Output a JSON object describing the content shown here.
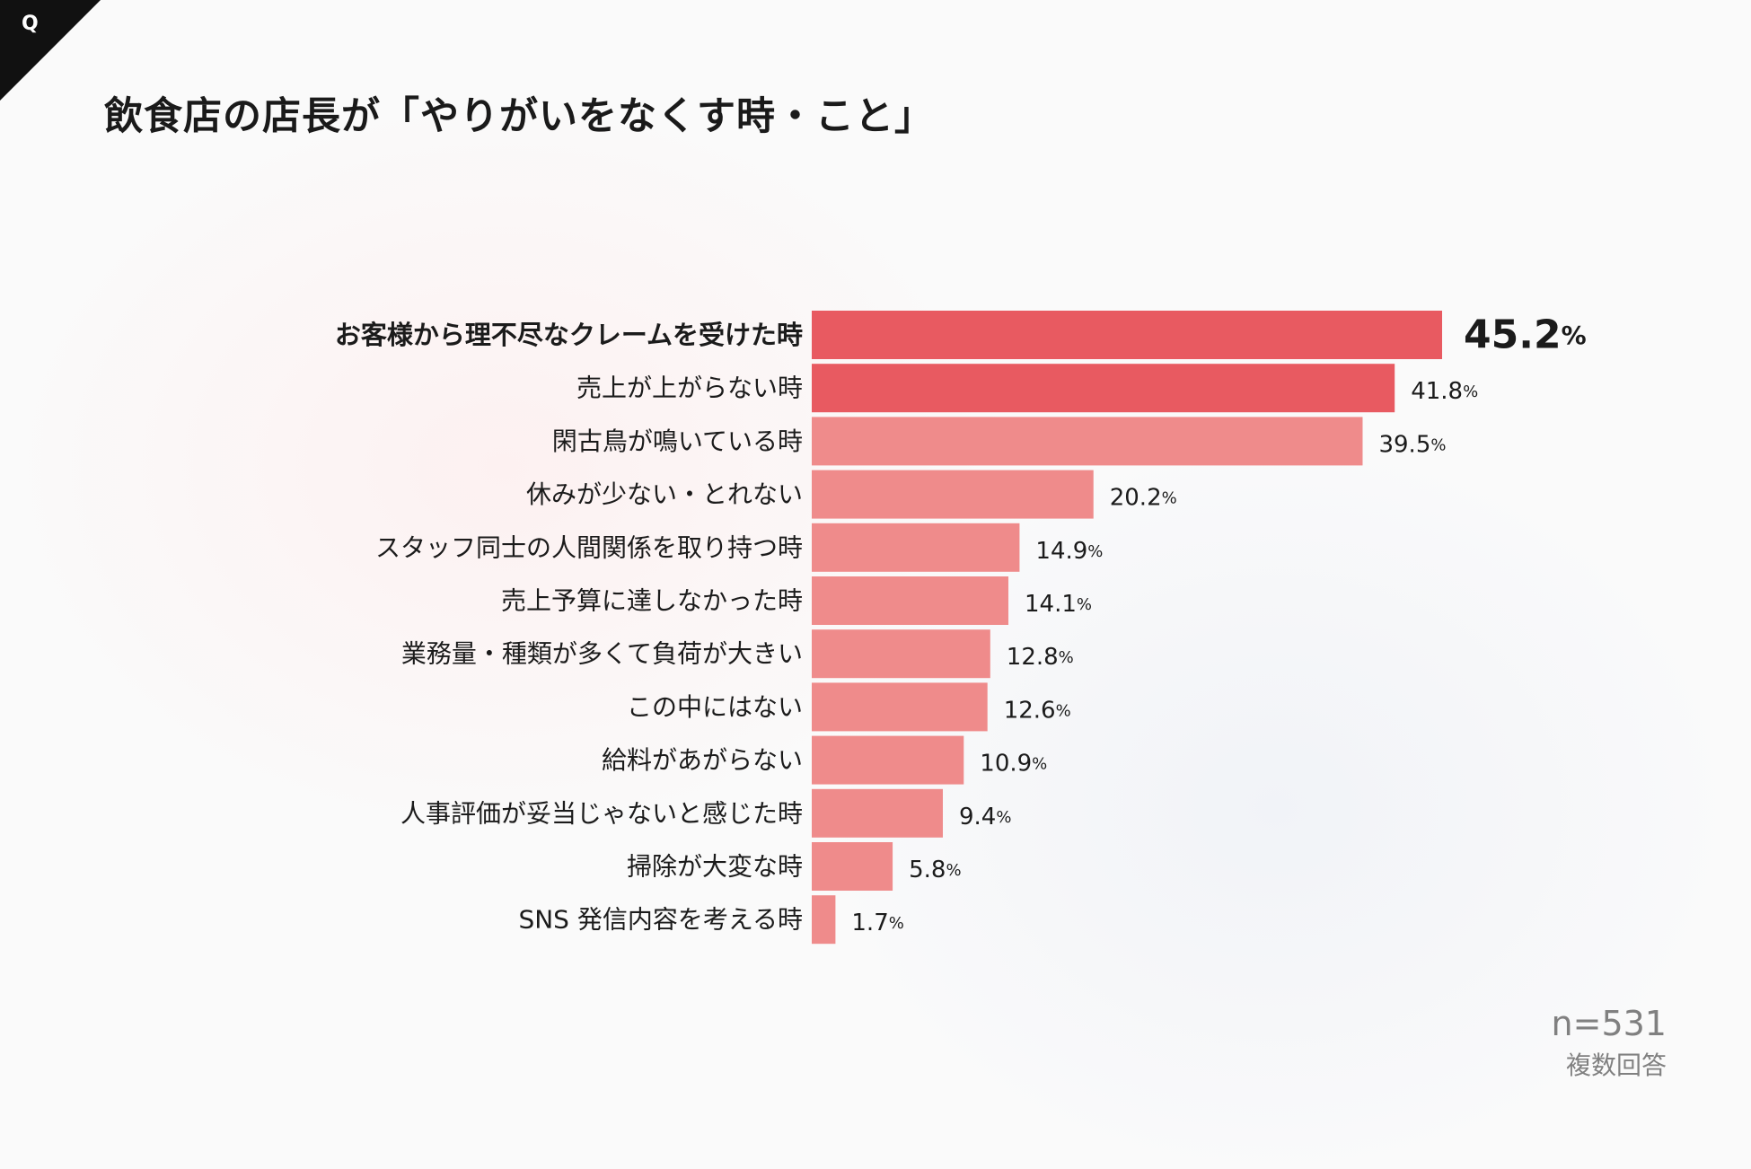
{
  "page": {
    "corner_icon": "q-mark",
    "title": "飲食店の店長が「やりがいをなくす時・こと」",
    "sample": "n=531",
    "answer_type": "複数回答"
  },
  "chart_data": {
    "type": "bar",
    "orientation": "horizontal",
    "categories": [
      "お客様から理不尽なクレームを受けた時",
      "売上が上がらない時",
      "閑古鳥が鳴いている時",
      "休みが少ない・とれない",
      "スタッフ同士の人間関係を取り持つ時",
      "売上予算に達しなかった時",
      "業務量・種類が多くて負荷が大きい",
      "この中にはない",
      "給料があがらない",
      "人事評価が妥当じゃないと感じた時",
      "掃除が大変な時",
      "SNS 発信内容を考える時"
    ],
    "values": [
      45.2,
      41.8,
      39.5,
      20.2,
      14.9,
      14.1,
      12.8,
      12.6,
      10.9,
      9.4,
      5.8,
      1.7
    ],
    "value_labels": [
      "45.2",
      "41.8",
      "39.5",
      "20.2",
      "14.9",
      "14.1",
      "12.8",
      "12.6",
      "10.9",
      "9.4",
      "5.8",
      "1.7"
    ],
    "unit": "%",
    "xlim": [
      0,
      45.2
    ],
    "grid": false,
    "legend": "none",
    "colors": {
      "top": "#e85a61",
      "rest": "#ef8b8b",
      "corner": "#111111"
    }
  }
}
